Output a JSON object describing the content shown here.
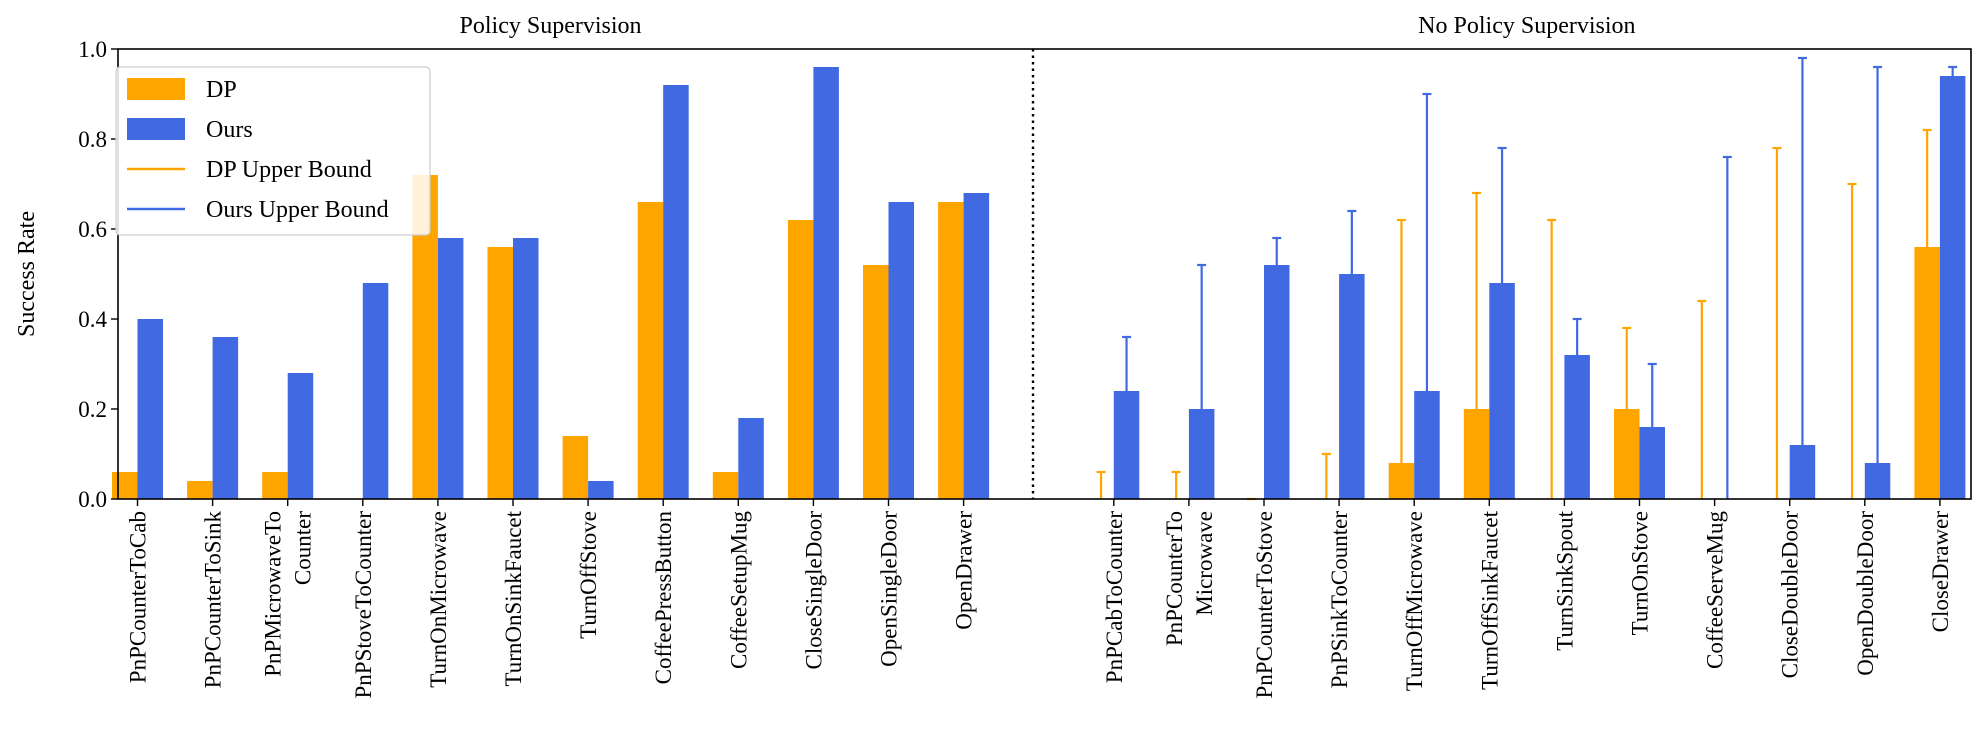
{
  "chart_data": {
    "type": "bar",
    "ylabel": "Success Rate",
    "ylim": [
      0,
      1.0
    ],
    "yticks": [
      "0.0",
      "0.2",
      "0.4",
      "0.6",
      "0.8",
      "1.0"
    ],
    "grid": false,
    "legend_placement": "top-left",
    "colors": {
      "DP": "#ffa500",
      "Ours": "#4169e1"
    },
    "legend": [
      "DP",
      "Ours",
      "DP Upper Bound",
      "Ours Upper Bound"
    ],
    "groups": [
      {
        "title": "Policy Supervision",
        "categories": [
          [
            "PnPCounterToCab"
          ],
          [
            "PnPCounterToSink"
          ],
          [
            "PnPMicrowaveTo",
            "Counter"
          ],
          [
            "PnPStoveToCounter"
          ],
          [
            "TurnOnMicrowave"
          ],
          [
            "TurnOnSinkFaucet"
          ],
          [
            "TurnOffStove"
          ],
          [
            "CoffeePressButton"
          ],
          [
            "CoffeeSetupMug"
          ],
          [
            "CloseSingleDoor"
          ],
          [
            "OpenSingleDoor"
          ],
          [
            "OpenDrawer"
          ]
        ],
        "series": [
          {
            "name": "DP",
            "values": [
              0.06,
              0.04,
              0.06,
              0.0,
              0.72,
              0.56,
              0.14,
              0.66,
              0.06,
              0.62,
              0.52,
              0.66
            ]
          },
          {
            "name": "Ours",
            "values": [
              0.4,
              0.36,
              0.28,
              0.48,
              0.58,
              0.58,
              0.04,
              0.92,
              0.18,
              0.96,
              0.66,
              0.68
            ]
          }
        ]
      },
      {
        "title": "No Policy Supervision",
        "categories": [
          [
            "PnPCabToCounter"
          ],
          [
            "PnPCounterTo",
            "Microwave"
          ],
          [
            "PnPCounterToStove"
          ],
          [
            "PnPSinkToCounter"
          ],
          [
            "TurnOffMicrowave"
          ],
          [
            "TurnOffSinkFaucet"
          ],
          [
            "TurnSinkSpout"
          ],
          [
            "TurnOnStove"
          ],
          [
            "CoffeeServeMug"
          ],
          [
            "CloseDoubleDoor"
          ],
          [
            "OpenDoubleDoor"
          ],
          [
            "CloseDrawer"
          ]
        ],
        "series": [
          {
            "name": "DP",
            "values": [
              0.0,
              0.0,
              0.0,
              0.0,
              0.08,
              0.2,
              0.0,
              0.2,
              0.0,
              0.0,
              0.0,
              0.56
            ],
            "upper_bound": [
              0.06,
              0.06,
              0.0,
              0.1,
              0.62,
              0.68,
              0.62,
              0.38,
              0.44,
              0.78,
              0.7,
              0.82
            ]
          },
          {
            "name": "Ours",
            "values": [
              0.24,
              0.2,
              0.52,
              0.5,
              0.24,
              0.48,
              0.32,
              0.16,
              0.0,
              0.12,
              0.08,
              0.94
            ],
            "upper_bound": [
              0.36,
              0.52,
              0.58,
              0.64,
              0.9,
              0.78,
              0.4,
              0.3,
              0.76,
              0.98,
              0.96,
              0.96
            ]
          }
        ]
      }
    ]
  }
}
